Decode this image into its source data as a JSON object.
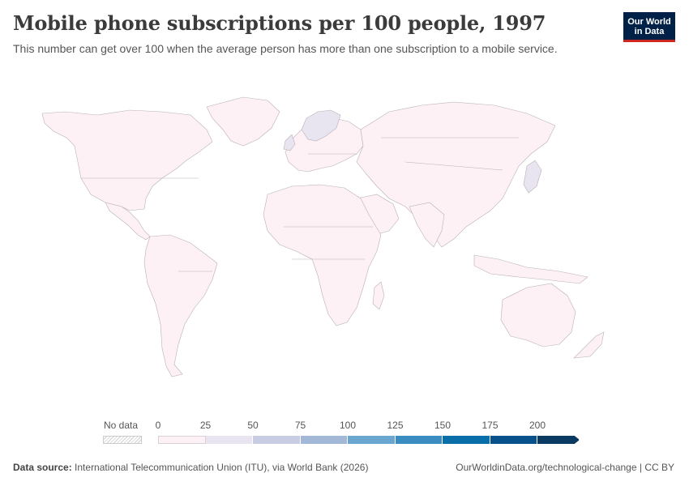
{
  "title": "Mobile phone subscriptions per 100 people, 1997",
  "subtitle": "This number can get over 100 when the average person has more than one subscription to a mobile service.",
  "logo": {
    "line1": "Our World",
    "line2": "in Data"
  },
  "legend": {
    "no_data_label": "No data",
    "ticks": [
      "0",
      "25",
      "50",
      "75",
      "100",
      "125",
      "150",
      "175",
      "200"
    ],
    "bins": [
      {
        "range": [
          0,
          25
        ],
        "color": "#fdf1f6"
      },
      {
        "range": [
          25,
          50
        ],
        "color": "#e8e4f0"
      },
      {
        "range": [
          50,
          75
        ],
        "color": "#c9cde3"
      },
      {
        "range": [
          75,
          100
        ],
        "color": "#a3b7d6"
      },
      {
        "range": [
          100,
          125
        ],
        "color": "#6aa6cf"
      },
      {
        "range": [
          125,
          150
        ],
        "color": "#3a8cc1"
      },
      {
        "range": [
          150,
          175
        ],
        "color": "#0a6fa8"
      },
      {
        "range": [
          175,
          200
        ],
        "color": "#08518a"
      },
      {
        "range": [
          200,
          null
        ],
        "color": "#0a3a62"
      }
    ]
  },
  "map_colors": {
    "default": "#fdf1f6",
    "low_mid": "#e8e4f0",
    "border": "#b8b0b8"
  },
  "footer": {
    "source_label": "Data source:",
    "source_text": "International Telecommunication Union (ITU), via World Bank (2026)",
    "right_text": "OurWorldinData.org/technological-change | CC BY"
  }
}
